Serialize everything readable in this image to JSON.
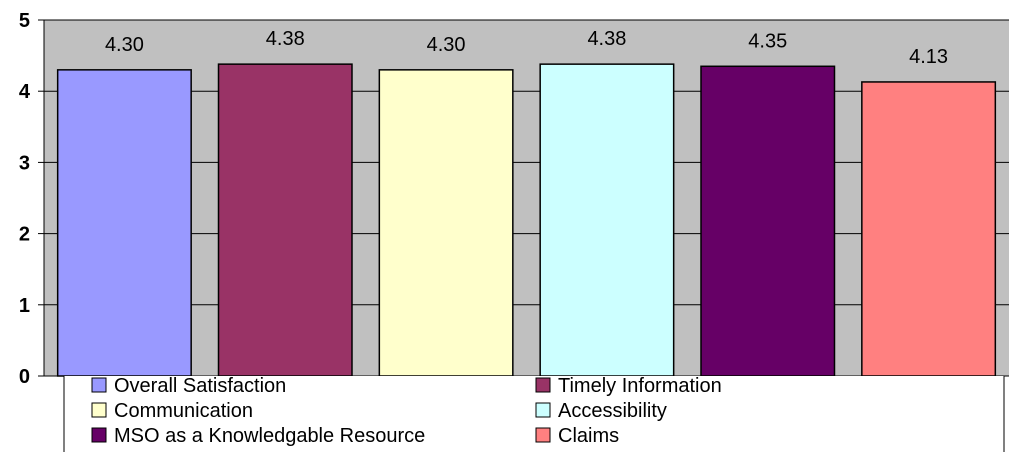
{
  "chart_data": {
    "type": "bar",
    "title": "",
    "xlabel": "",
    "ylabel": "",
    "ylim": [
      0,
      5
    ],
    "yticks": [
      0,
      1,
      2,
      3,
      4,
      5
    ],
    "grid": true,
    "legend_position": "bottom",
    "plot_background": "#c0c0c0",
    "series": [
      {
        "name": "Overall Satisfaction",
        "value": 4.3,
        "label": "4.30",
        "color": "#9999ff"
      },
      {
        "name": "Timely Information",
        "value": 4.38,
        "label": "4.38",
        "color": "#993366"
      },
      {
        "name": "Communication",
        "value": 4.3,
        "label": "4.30",
        "color": "#ffffcc"
      },
      {
        "name": "Accessibility",
        "value": 4.38,
        "label": "4.38",
        "color": "#ccffff"
      },
      {
        "name": "MSO as a Knowledgable Resource",
        "value": 4.35,
        "label": "4.35",
        "color": "#660066"
      },
      {
        "name": "Claims",
        "value": 4.13,
        "label": "4.13",
        "color": "#ff8080"
      }
    ]
  }
}
